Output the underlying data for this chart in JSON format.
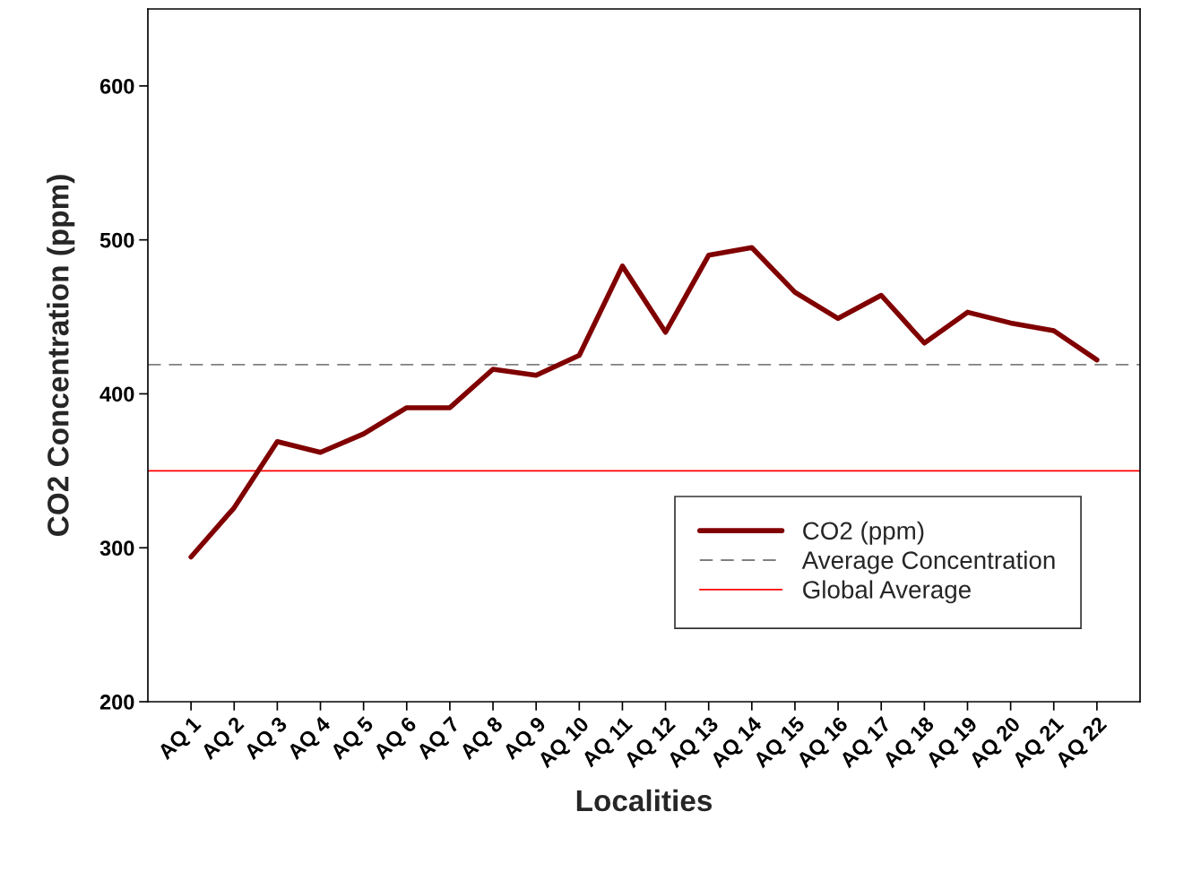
{
  "chart_data": {
    "type": "line",
    "xlabel": "Localities",
    "ylabel": "CO2 Concentration (ppm)",
    "categories": [
      "AQ 1",
      "AQ 2",
      "AQ 3",
      "AQ 4",
      "AQ 5",
      "AQ 6",
      "AQ 7",
      "AQ 8",
      "AQ 9",
      "AQ 10",
      "AQ 11",
      "AQ 12",
      "AQ 13",
      "AQ 14",
      "AQ 15",
      "AQ 16",
      "AQ 17",
      "AQ 18",
      "AQ 19",
      "AQ 20",
      "AQ 21",
      "AQ 22"
    ],
    "series": [
      {
        "name": "CO2 (ppm)",
        "color": "#800000",
        "values": [
          294,
          326,
          369,
          362,
          374,
          391,
          391,
          416,
          412,
          425,
          483,
          440,
          490,
          495,
          466,
          449,
          464,
          433,
          453,
          446,
          441,
          422
        ]
      }
    ],
    "ref_lines": [
      {
        "axis": "y",
        "value": 419,
        "label": "Average Concentration",
        "color": "#808080",
        "line_style": "dashed"
      },
      {
        "axis": "y",
        "value": 350,
        "label": "Global Average",
        "color": "#ff0000",
        "line_style": "solid"
      }
    ],
    "ylim": [
      200,
      650
    ],
    "yticks": [
      200,
      300,
      400,
      500,
      600
    ],
    "grid": false,
    "legend": "bottom right",
    "marker": "none",
    "line_style": "solid"
  }
}
